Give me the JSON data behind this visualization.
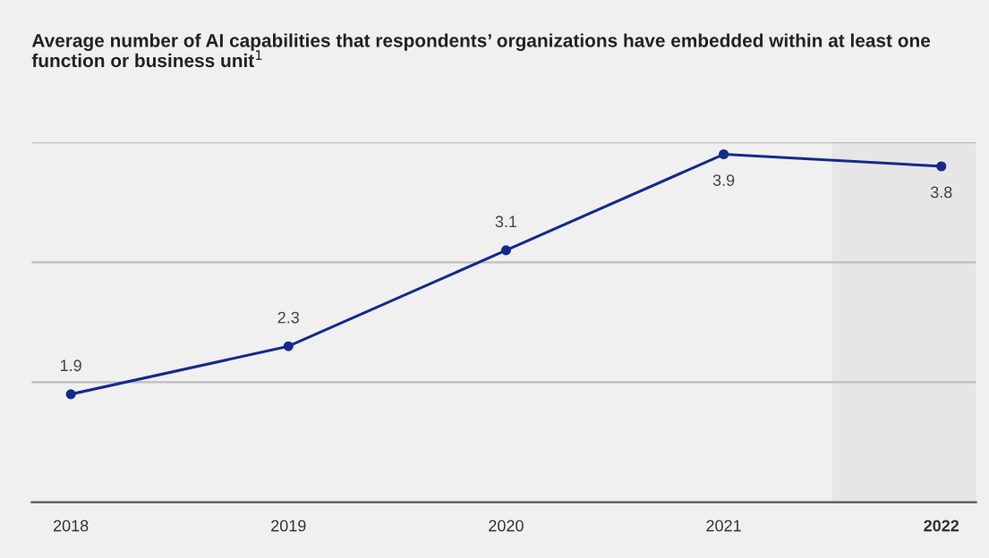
{
  "chart_data": {
    "type": "line",
    "title": "Average number of AI capabilities that respondents’ organizations have embedded within at least one function or business unit$^{1}$",
    "x": [
      2018,
      2019,
      2020,
      2021,
      2022
    ],
    "series": [
      {
        "color": "#142a8c",
        "values": [
          1.9,
          2.3,
          3.1,
          3.9,
          3.8
        ]
      }
    ],
    "data_labels": true,
    "marker": "circle",
    "line_style": "solid",
    "tick_labels": "x",
    "xlim": [
      2017.82,
      2022.16
    ],
    "xticks": [
      2018,
      2019,
      2020,
      2021,
      2022
    ],
    "ylim": [
      1,
      4
    ],
    "ref_lines": [
      {
        "axis": "y",
        "value": 2,
        "color": "#bdbdbd"
      },
      {
        "axis": "y",
        "value": 3,
        "color": "#bdbdbd"
      },
      {
        "axis": "y",
        "value": 4,
        "color": "#bdbdbd"
      }
    ],
    "bands": [
      {
        "axis": "x",
        "from": 2021.5,
        "to": 2022.16,
        "color": "#e6e6e6"
      }
    ]
  }
}
